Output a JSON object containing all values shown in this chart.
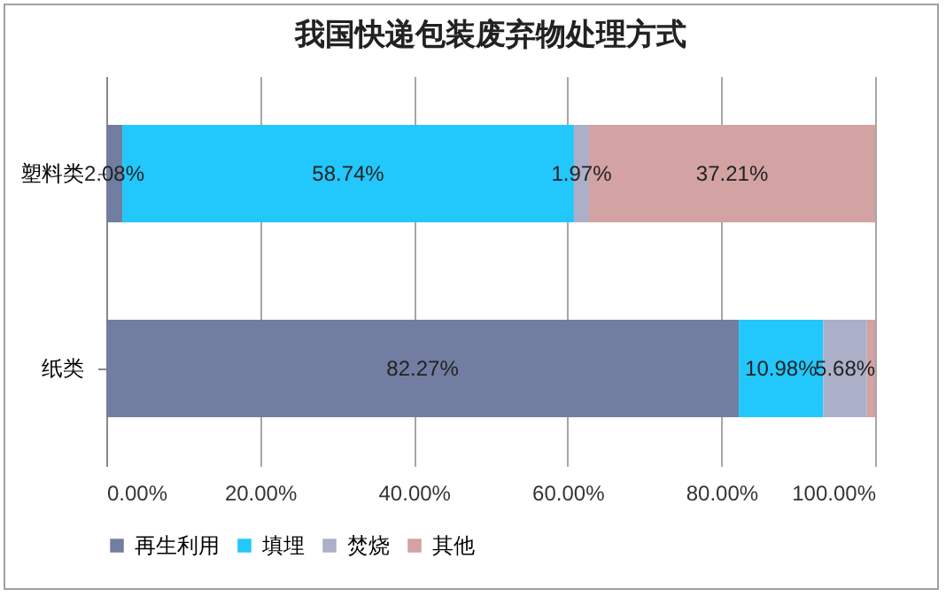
{
  "chart_data": {
    "type": "bar",
    "orientation": "horizontal",
    "stacked": true,
    "title": "我国快递包装废弃物处理方式",
    "categories": [
      "塑料类",
      "纸类"
    ],
    "series": [
      {
        "name": "再生利用",
        "color": "#717ea1",
        "values": [
          2.08,
          82.27
        ],
        "value_labels": [
          "2.08%",
          "82.27%"
        ]
      },
      {
        "name": "填埋",
        "color": "#22c7fc",
        "values": [
          58.74,
          10.98
        ],
        "value_labels": [
          "58.74%",
          "10.98%"
        ]
      },
      {
        "name": "焚烧",
        "color": "#abb0c8",
        "values": [
          1.97,
          5.68
        ],
        "value_labels": [
          "1.97%",
          "5.68%"
        ]
      },
      {
        "name": "其他",
        "color": "#d3a2a2",
        "values": [
          37.21,
          1.07
        ],
        "value_labels": [
          "37.21%",
          null
        ]
      }
    ],
    "xlim": [
      0,
      100
    ],
    "xticks": [
      {
        "value": 0,
        "label": "0.00%"
      },
      {
        "value": 20,
        "label": "20.00%"
      },
      {
        "value": 40,
        "label": "40.00%"
      },
      {
        "value": 60,
        "label": "60.00%"
      },
      {
        "value": 80,
        "label": "80.00%"
      },
      {
        "value": 100,
        "label": "100.00%"
      }
    ],
    "grid": "x",
    "legend": "bottom"
  }
}
